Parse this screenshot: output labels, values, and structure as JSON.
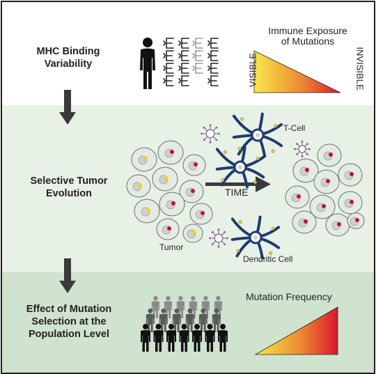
{
  "sections": {
    "mhc": {
      "label_line1": "MHC Binding",
      "label_line2": "Variability",
      "exposure_title_line1": "Immune Exposure",
      "exposure_title_line2": "of Mutations",
      "visible_label": "VISIBLE",
      "invisible_label": "INVISIBLE"
    },
    "evolution": {
      "label_line1": "Selective Tumor",
      "label_line2": "Evolution",
      "time_label": "TIME",
      "tcell_label": "T-Cell",
      "tumor_label": "Tumor",
      "dendritic_label": "Dendritic Cell"
    },
    "population": {
      "label_line1": "Effect of Mutation",
      "label_line2": "Selection at the",
      "label_line3": "Population Level",
      "frequency_title": "Mutation Frequency"
    }
  },
  "colors": {
    "top_band": "#ffffff",
    "middle_band": "#e7f1e6",
    "bottom_band": "#cfe3cf",
    "frame": "#231f20",
    "gradient_yellow": "#f7e84a",
    "gradient_orange": "#ec8a32",
    "gradient_red": "#d7192e",
    "dendritic_blue": "#1f3a6e",
    "virus_purple": "#7d5f8a",
    "nucleus_gray": "#cfcfcf",
    "mutation_yellow": "#f3d21e",
    "mutation_red": "#c8102e"
  },
  "icons": [
    "person-icon",
    "mhc-allele-glyph",
    "down-arrow-icon",
    "right-arrow-icon",
    "tumor-cell-icon",
    "dendritic-cell-icon",
    "virus-icon",
    "crowd-icon"
  ]
}
